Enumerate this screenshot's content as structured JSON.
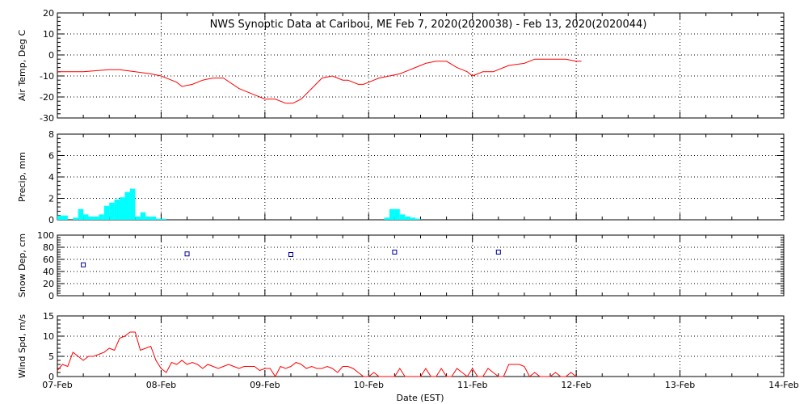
{
  "title": "NWS Synoptic Data at Caribou, ME   Feb  7, 2020(2020038) - Feb 13, 2020(2020044)",
  "xlabel": "Date (EST)",
  "x_ticks": [
    "07-Feb",
    "08-Feb",
    "09-Feb",
    "10-Feb",
    "11-Feb",
    "12-Feb",
    "13-Feb",
    "14-Feb"
  ],
  "colors": {
    "temp": "#ff0000",
    "precip": "#00ffff",
    "snow": "#00009c",
    "wind": "#ff0000",
    "grid": "#000000"
  },
  "chart_data": [
    {
      "type": "line",
      "ylabel": "Air Temp, Deg C",
      "ylim": [
        -30,
        20
      ],
      "yticks": [
        20,
        10,
        0,
        -10,
        -20,
        -30
      ],
      "x_unit": "days since 07-Feb 00:00 EST",
      "x": [
        0,
        0.25,
        0.5,
        0.6,
        0.75,
        0.9,
        1.0,
        1.1,
        1.15,
        1.2,
        1.3,
        1.4,
        1.5,
        1.6,
        1.75,
        1.85,
        2.0,
        2.1,
        2.2,
        2.27,
        2.35,
        2.45,
        2.55,
        2.65,
        2.7,
        2.75,
        2.8,
        2.9,
        2.95,
        3.0,
        3.05,
        3.1,
        3.2,
        3.3,
        3.4,
        3.5,
        3.55,
        3.65,
        3.75,
        3.85,
        3.9,
        3.95,
        4.0,
        4.05,
        4.1,
        4.15,
        4.2,
        4.3,
        4.35,
        4.5,
        4.6,
        4.7,
        4.8,
        4.9,
        5.0,
        5.05
      ],
      "y": [
        -8,
        -8,
        -7,
        -7,
        -8,
        -9,
        -10,
        -12,
        -13,
        -15,
        -14,
        -12,
        -11,
        -11,
        -16,
        -18,
        -21,
        -21,
        -23,
        -23,
        -21,
        -16,
        -11,
        -10,
        -11,
        -12,
        -12,
        -14,
        -14,
        -13,
        -12,
        -11,
        -10,
        -9,
        -7,
        -5,
        -4,
        -3,
        -3,
        -6,
        -7,
        -8,
        -10,
        -9,
        -8,
        -8,
        -8,
        -6,
        -5,
        -4,
        -2,
        -2,
        -2,
        -2,
        -3,
        -3
      ]
    },
    {
      "type": "bar",
      "ylabel": "Precip, mm",
      "ylim": [
        0,
        8
      ],
      "yticks": [
        8,
        6,
        4,
        2,
        0
      ],
      "x_unit": "days since 07-Feb 00:00 EST",
      "bar_width": 0.05,
      "x": [
        0.0,
        0.05,
        0.15,
        0.2,
        0.25,
        0.3,
        0.35,
        0.4,
        0.45,
        0.5,
        0.55,
        0.6,
        0.65,
        0.7,
        0.75,
        0.8,
        0.85,
        0.9,
        0.95,
        1.0,
        3.15,
        3.2,
        3.25,
        3.3,
        3.35,
        3.4,
        3.45
      ],
      "values": [
        0.4,
        0.4,
        0.2,
        1.0,
        0.5,
        0.3,
        0.3,
        0.5,
        1.3,
        1.6,
        1.9,
        2.1,
        2.6,
        2.9,
        0.3,
        0.7,
        0.3,
        0.3,
        0.1,
        0.1,
        0.2,
        1.0,
        1.0,
        0.5,
        0.3,
        0.2,
        0.1
      ]
    },
    {
      "type": "scatter",
      "ylabel": "Snow Dep, cm",
      "ylim": [
        0,
        100
      ],
      "yticks": [
        100,
        80,
        60,
        40,
        20,
        0
      ],
      "x_unit": "days since 07-Feb 00:00 EST",
      "x": [
        0.25,
        1.25,
        2.25,
        3.25,
        4.25
      ],
      "y": [
        51,
        69,
        68,
        72,
        72
      ]
    },
    {
      "type": "line",
      "ylabel": "Wind Spd, m/s",
      "ylim": [
        0,
        15
      ],
      "yticks": [
        15,
        10,
        5,
        0
      ],
      "x_unit": "days since 07-Feb 00:00 EST",
      "x": [
        0,
        0.05,
        0.1,
        0.15,
        0.2,
        0.25,
        0.3,
        0.35,
        0.4,
        0.45,
        0.5,
        0.55,
        0.6,
        0.65,
        0.7,
        0.75,
        0.8,
        0.85,
        0.9,
        0.95,
        1.0,
        1.05,
        1.1,
        1.15,
        1.2,
        1.25,
        1.3,
        1.35,
        1.4,
        1.45,
        1.5,
        1.55,
        1.6,
        1.65,
        1.7,
        1.75,
        1.8,
        1.85,
        1.9,
        1.95,
        2.0,
        2.05,
        2.1,
        2.15,
        2.2,
        2.25,
        2.3,
        2.35,
        2.4,
        2.45,
        2.5,
        2.55,
        2.6,
        2.65,
        2.7,
        2.75,
        2.8,
        2.85,
        2.9,
        2.95,
        3.0,
        3.05,
        3.1,
        3.15,
        3.2,
        3.25,
        3.3,
        3.35,
        3.4,
        3.45,
        3.5,
        3.55,
        3.6,
        3.65,
        3.7,
        3.75,
        3.8,
        3.85,
        3.9,
        3.95,
        4.0,
        4.05,
        4.1,
        4.15,
        4.2,
        4.25,
        4.3,
        4.35,
        4.4,
        4.45,
        4.5,
        4.55,
        4.6,
        4.65,
        4.7,
        4.75,
        4.8,
        4.85,
        4.9,
        4.95,
        5.0
      ],
      "y": [
        1.5,
        3.0,
        2.5,
        6.0,
        5.0,
        4.0,
        5.0,
        5.0,
        5.5,
        6.0,
        7.0,
        6.5,
        9.5,
        10.0,
        11.0,
        11.0,
        6.5,
        7.0,
        7.5,
        4.0,
        2.0,
        1.0,
        3.5,
        3.0,
        4.0,
        3.0,
        3.5,
        3.0,
        2.0,
        3.0,
        2.5,
        2.0,
        2.5,
        3.0,
        2.5,
        2.0,
        2.5,
        2.5,
        2.5,
        1.5,
        2.0,
        2.0,
        0.0,
        2.5,
        2.0,
        2.5,
        3.5,
        3.0,
        2.0,
        2.5,
        2.0,
        2.0,
        2.5,
        2.0,
        1.0,
        2.5,
        2.5,
        2.0,
        1.0,
        0.0,
        0.0,
        1.0,
        0.0,
        0.0,
        0.0,
        0.0,
        2.0,
        0.0,
        0.0,
        0.0,
        0.0,
        2.0,
        0.0,
        0.0,
        2.0,
        0.0,
        0.0,
        2.0,
        1.0,
        0.0,
        2.0,
        0.0,
        0.0,
        2.0,
        1.0,
        0.0,
        0.0,
        3.0,
        3.0,
        3.0,
        2.5,
        0.0,
        1.0,
        0.0,
        0.0,
        0.0,
        1.0,
        0.0,
        0.0,
        1.0,
        0.0
      ]
    }
  ]
}
